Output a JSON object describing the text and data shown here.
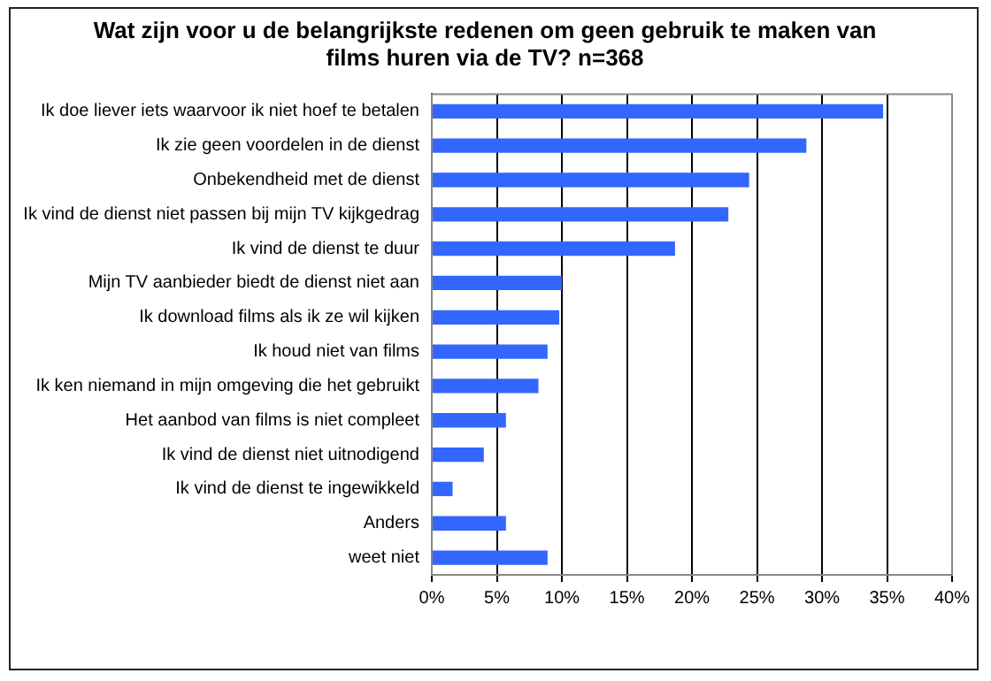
{
  "chart_data": {
    "type": "bar",
    "orientation": "horizontal",
    "title": [
      "Wat zijn voor u de belangrijkste redenen om geen gebruik te maken van",
      "films huren via de TV? n=368"
    ],
    "categories": [
      "Ik doe liever iets waarvoor ik niet hoef te betalen",
      "Ik zie geen voordelen in de dienst",
      "Onbekendheid met de dienst",
      "Ik vind de dienst niet passen bij mijn TV kijkgedrag",
      "Ik vind de dienst te duur",
      "Mijn TV aanbieder biedt de dienst niet aan",
      "Ik download films als ik ze wil kijken",
      "Ik houd niet van films",
      "Ik ken niemand in mijn omgeving die het gebruikt",
      "Het aanbod van films is niet compleet",
      "Ik vind de dienst niet uitnodigend",
      "Ik vind de dienst te ingewikkeld",
      "Anders",
      "weet niet"
    ],
    "values": [
      34.7,
      28.8,
      24.4,
      22.8,
      18.7,
      10.0,
      9.8,
      8.9,
      8.2,
      5.7,
      4.0,
      1.6,
      5.7,
      8.9
    ],
    "color": "#3366ff",
    "xlim": [
      0,
      40
    ],
    "xticks": [
      {
        "value": 0,
        "label": "0%"
      },
      {
        "value": 5,
        "label": "5%"
      },
      {
        "value": 10,
        "label": "10%"
      },
      {
        "value": 15,
        "label": "15%"
      },
      {
        "value": 20,
        "label": "20%"
      },
      {
        "value": 25,
        "label": "25%"
      },
      {
        "value": 30,
        "label": "30%"
      },
      {
        "value": 35,
        "label": "35%"
      },
      {
        "value": 40,
        "label": "40%"
      }
    ],
    "grid": "x",
    "legend": false
  }
}
